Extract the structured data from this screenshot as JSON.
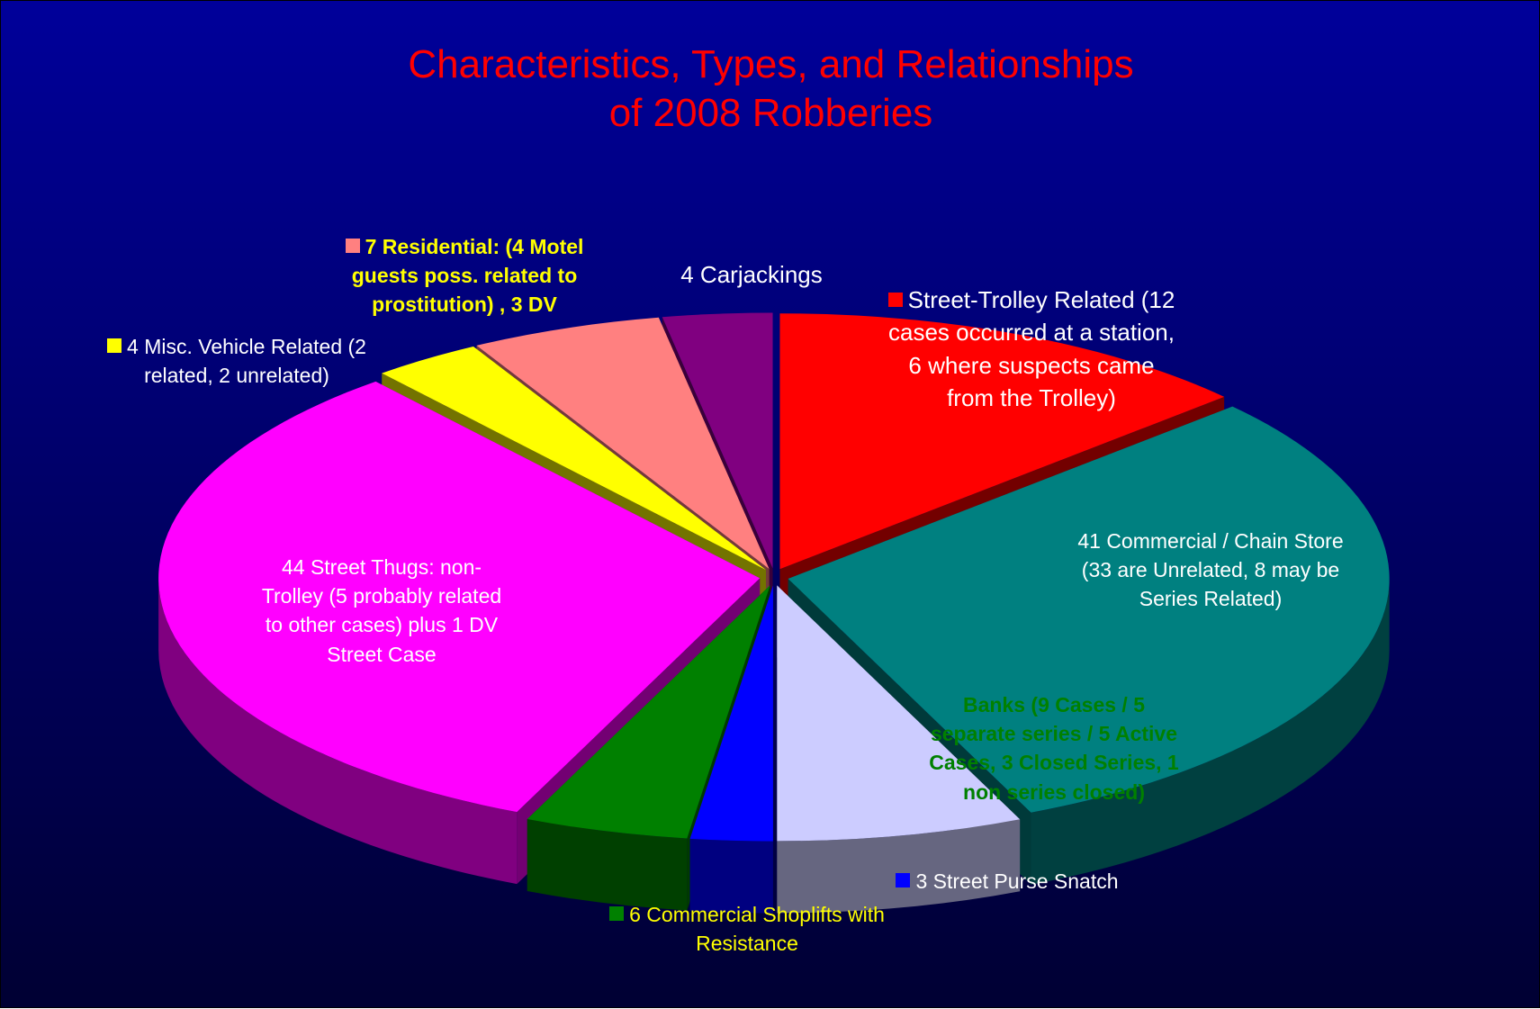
{
  "chart_data": {
    "type": "pie3d",
    "title": [
      "Characteristics, Types, and Relationships",
      "of  2008 Robberies"
    ],
    "categories": [
      "Street-Trolley Related (12 cases occurred at a station, 6 where suspects came from the Trolley)",
      "41 Commercial / Chain Store (33 are Unrelated, 8 may be Series Related)",
      "Banks  (9 Cases / 5 separate series / 5 Active Cases, 3 Closed Series, 1 non series closed)",
      "3 Street Purse Snatch",
      "6 Commercial Shoplifts with Resistance",
      "44 Street Thugs: non-Trolley (5 probably related to other cases) plus 1 DV Street Case",
      "4 Misc. Vehicle Related (2 related, 2 unrelated)",
      "7 Residential: (4 Motel guests poss. related to prostitution) , 3 DV",
      "4 Carjackings"
    ],
    "values": [
      18,
      41,
      9,
      3,
      6,
      44,
      4,
      7,
      4
    ],
    "colors": [
      "#ff0000",
      "#008080",
      "#ccccff",
      "#0000ff",
      "#008000",
      "#ff00ff",
      "#ffff00",
      "#ff8080",
      "#800080"
    ],
    "label_colors": [
      "#ffffff",
      "#ffffff",
      "#008000",
      "#ffffff",
      "#ffff00",
      "#ffffff",
      "#ffffff",
      "#ffff00",
      "#ffffff"
    ],
    "title_color": "#ff0000"
  }
}
